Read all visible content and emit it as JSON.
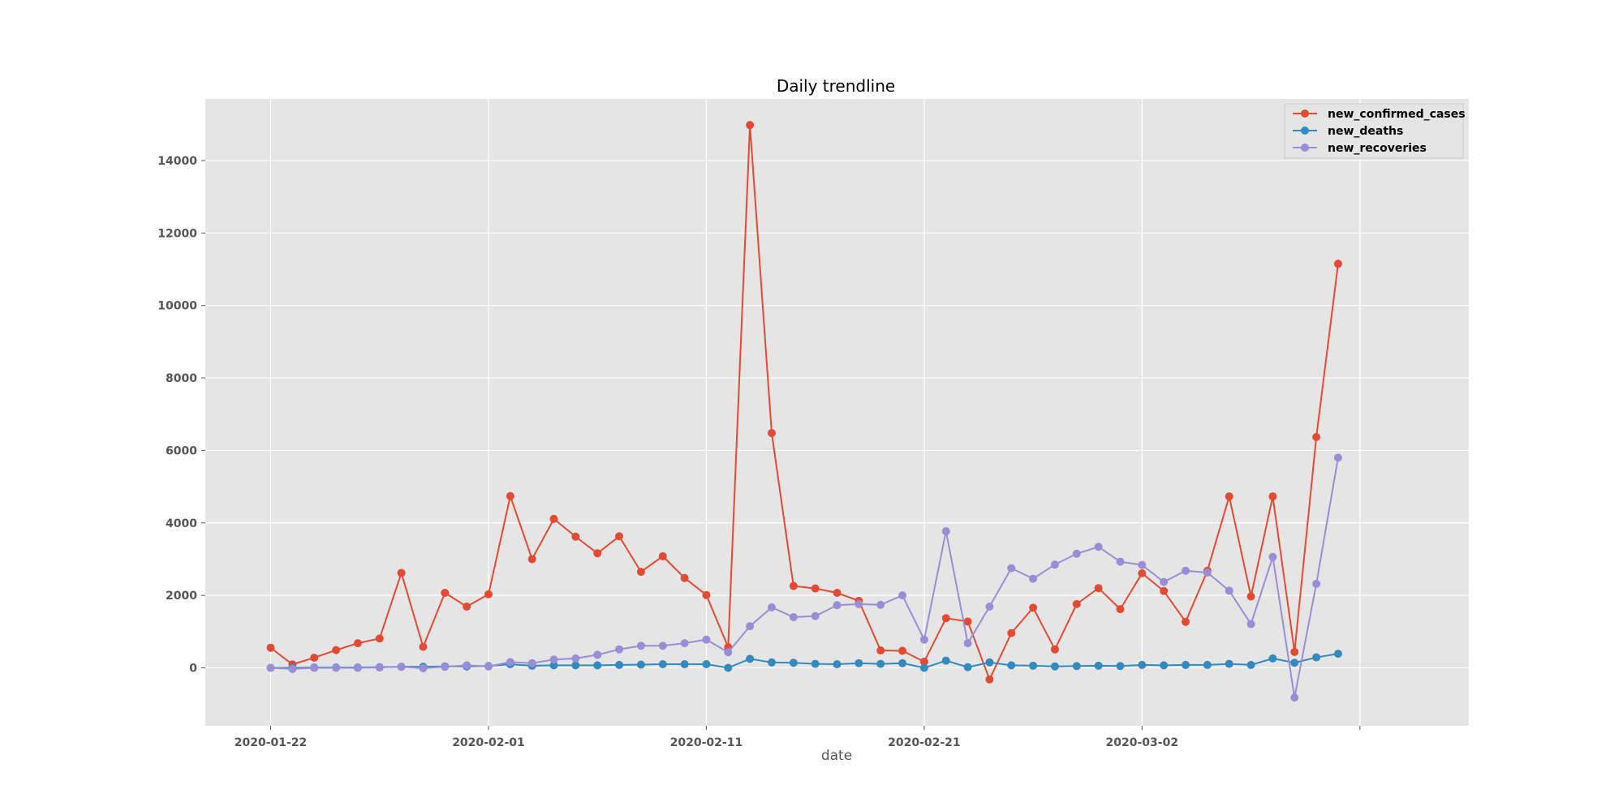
{
  "chart_data": {
    "type": "line",
    "title": "Daily trendline",
    "xlabel": "date",
    "ylabel": "",
    "x_ticks": [
      "2020-01-22",
      "2020-02-01",
      "2020-02-11",
      "2020-02-21",
      "2020-03-02"
    ],
    "y_ticks": [
      0,
      2000,
      4000,
      6000,
      8000,
      10000,
      12000,
      14000
    ],
    "ylim": [
      -1600,
      15700
    ],
    "xlim": [
      "2020-01-19",
      "2020-03-17"
    ],
    "grid": true,
    "legend_position": "top-right",
    "x": [
      "2020-01-22",
      "2020-01-23",
      "2020-01-24",
      "2020-01-25",
      "2020-01-26",
      "2020-01-27",
      "2020-01-28",
      "2020-01-29",
      "2020-01-30",
      "2020-01-31",
      "2020-02-01",
      "2020-02-02",
      "2020-02-03",
      "2020-02-04",
      "2020-02-05",
      "2020-02-06",
      "2020-02-07",
      "2020-02-08",
      "2020-02-09",
      "2020-02-10",
      "2020-02-11",
      "2020-02-12",
      "2020-02-13",
      "2020-02-14",
      "2020-02-15",
      "2020-02-16",
      "2020-02-17",
      "2020-02-18",
      "2020-02-19",
      "2020-02-20",
      "2020-02-21",
      "2020-02-22",
      "2020-02-23",
      "2020-02-24",
      "2020-02-25",
      "2020-02-26",
      "2020-02-27",
      "2020-02-28",
      "2020-02-29",
      "2020-03-01",
      "2020-03-02",
      "2020-03-03",
      "2020-03-04",
      "2020-03-05",
      "2020-03-06",
      "2020-03-07",
      "2020-03-08",
      "2020-03-09",
      "2020-03-10",
      "2020-03-11",
      "2020-03-12"
    ],
    "series": [
      {
        "name": "new_confirmed_cases",
        "color": "#E24A33",
        "values": [
          555,
          95,
          280,
          490,
          680,
          810,
          2620,
          580,
          2070,
          1690,
          2030,
          4740,
          3000,
          4110,
          3620,
          3160,
          3630,
          2650,
          3080,
          2480,
          2010,
          570,
          14980,
          6480,
          2260,
          2190,
          2070,
          1850,
          480,
          470,
          170,
          1370,
          1280,
          -320,
          960,
          1660,
          510,
          1760,
          2200,
          1620,
          2610,
          2120,
          1270,
          2680,
          4730,
          1970,
          4730,
          440,
          6370,
          11150,
          null
        ]
      },
      {
        "name": "new_deaths",
        "color": "#348ABD",
        "values": [
          0,
          0,
          10,
          10,
          10,
          20,
          30,
          30,
          40,
          40,
          50,
          100,
          60,
          70,
          70,
          70,
          80,
          90,
          100,
          100,
          100,
          0,
          250,
          150,
          140,
          110,
          100,
          130,
          110,
          130,
          0,
          200,
          20,
          150,
          70,
          60,
          40,
          50,
          60,
          50,
          80,
          70,
          80,
          80,
          110,
          80,
          260,
          140,
          290,
          390,
          null
        ]
      },
      {
        "name": "new_recoveries",
        "color": "#988ED5",
        "values": [
          0,
          -30,
          0,
          0,
          0,
          10,
          30,
          -10,
          30,
          70,
          40,
          160,
          130,
          230,
          260,
          360,
          510,
          610,
          610,
          680,
          780,
          430,
          1150,
          1670,
          1400,
          1430,
          1730,
          1760,
          1740,
          2000,
          780,
          3770,
          680,
          1690,
          2750,
          2460,
          2850,
          3150,
          3340,
          2930,
          2840,
          2370,
          2680,
          2630,
          2130,
          1210,
          3060,
          -820,
          2320,
          5800,
          null
        ]
      }
    ]
  }
}
